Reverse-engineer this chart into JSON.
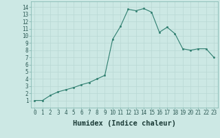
{
  "x": [
    0,
    1,
    2,
    3,
    4,
    5,
    6,
    7,
    8,
    9,
    10,
    11,
    12,
    13,
    14,
    15,
    16,
    17,
    18,
    19,
    20,
    21,
    22,
    23
  ],
  "y": [
    1,
    1,
    1.7,
    2.2,
    2.5,
    2.8,
    3.2,
    3.5,
    4.0,
    4.5,
    9.5,
    11.3,
    13.7,
    13.5,
    13.8,
    13.3,
    10.5,
    11.2,
    10.3,
    8.2,
    8.0,
    8.2,
    8.2,
    7.0
  ],
  "xlim": [
    -0.5,
    23.5
  ],
  "ylim": [
    0.0,
    14.8
  ],
  "xticks": [
    0,
    1,
    2,
    3,
    4,
    5,
    6,
    7,
    8,
    9,
    10,
    11,
    12,
    13,
    14,
    15,
    16,
    17,
    18,
    19,
    20,
    21,
    22,
    23
  ],
  "yticks": [
    1,
    2,
    3,
    4,
    5,
    6,
    7,
    8,
    9,
    10,
    11,
    12,
    13,
    14
  ],
  "xlabel": "Humidex (Indice chaleur)",
  "line_color": "#2d7d6e",
  "marker": "o",
  "marker_size": 1.8,
  "bg_color": "#cce8e4",
  "grid_color": "#b8d8d4",
  "xlabel_fontsize": 7.5,
  "tick_fontsize": 5.5,
  "line_width": 0.8
}
